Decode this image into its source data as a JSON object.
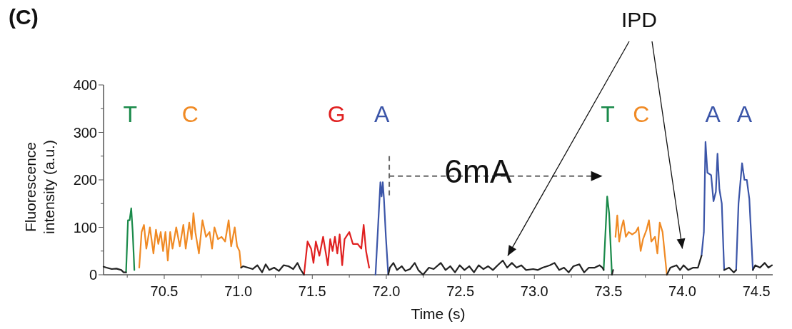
{
  "chart_data": {
    "type": "line",
    "xlabel": "Time (s)",
    "ylabel": "Fluorescence intensity (a.u.)",
    "xlim": [
      70.09,
      74.61
    ],
    "ylim": [
      0,
      400
    ],
    "xticks": [
      {
        "value": 70.25,
        "label": null
      },
      70.5,
      {
        "value": 70.75,
        "label": null
      },
      {
        "value": 71,
        "label": "71.0"
      },
      {
        "value": 71.25,
        "label": null
      },
      71.5,
      {
        "value": 71.75,
        "label": null
      },
      {
        "value": 72,
        "label": "72.0"
      },
      {
        "value": 72.25,
        "label": null
      },
      72.5,
      {
        "value": 72.75,
        "label": null
      },
      {
        "value": 73,
        "label": "73.0"
      },
      {
        "value": 73.25,
        "label": null
      },
      73.5,
      {
        "value": 73.75,
        "label": null
      },
      {
        "value": 74,
        "label": "74.0"
      },
      {
        "value": 74.25,
        "label": null
      },
      74.5
    ],
    "yticks": [
      0,
      {
        "value": 50,
        "label": null
      },
      100,
      {
        "value": 150,
        "label": null
      },
      200,
      {
        "value": 250,
        "label": null
      },
      300,
      {
        "value": 350,
        "label": null
      },
      400
    ],
    "grid": false,
    "marker": "none",
    "line_style": "solid",
    "series": [
      {
        "color": "#1a8a4a",
        "x": [
          70.242,
          70.255,
          70.266,
          70.277,
          70.287,
          70.298,
          71.0,
          73.468,
          73.492,
          73.505,
          73.524
        ],
        "values": [
          5,
          115,
          115,
          140,
          90,
          10,
          null,
          10,
          165,
          130,
          0
        ]
      },
      {
        "color": "#f08a24",
        "x": [
          70.331,
          70.347,
          70.363,
          70.379,
          70.403,
          70.427,
          70.444,
          70.46,
          70.476,
          70.492,
          70.508,
          70.524,
          70.54,
          70.556,
          70.581,
          70.605,
          70.629,
          70.645,
          70.669,
          70.685,
          70.697,
          70.71,
          70.734,
          70.758,
          70.782,
          70.806,
          70.823,
          70.839,
          70.863,
          70.887,
          70.911,
          70.935,
          70.952,
          70.976,
          70.992,
          71.008,
          71.019,
          73.532,
          73.548,
          73.56,
          73.573,
          73.589,
          73.602,
          73.618,
          73.637,
          73.661,
          73.685,
          73.702,
          73.718,
          73.734,
          73.758,
          73.774,
          73.79,
          73.815,
          73.831,
          73.847,
          73.866,
          73.882,
          73.895
        ],
        "values": [
          15,
          90,
          105,
          55,
          100,
          45,
          95,
          65,
          90,
          50,
          90,
          30,
          90,
          55,
          100,
          60,
          105,
          55,
          110,
          75,
          130,
          90,
          45,
          115,
          80,
          90,
          55,
          100,
          75,
          80,
          70,
          115,
          60,
          100,
          60,
          50,
          15,
          null,
          80,
          125,
          70,
          100,
          115,
          80,
          90,
          85,
          90,
          100,
          50,
          75,
          95,
          115,
          70,
          80,
          45,
          110,
          90,
          40,
          0
        ]
      },
      {
        "color": "#e02020",
        "x": [
          71.444,
          71.468,
          71.492,
          71.508,
          71.524,
          71.548,
          71.573,
          71.589,
          71.605,
          71.621,
          71.637,
          71.653,
          71.669,
          71.685,
          71.702,
          71.718,
          71.75,
          71.774,
          71.806,
          71.831,
          71.847,
          71.863,
          71.884
        ],
        "values": [
          0,
          70,
          55,
          25,
          70,
          40,
          80,
          50,
          20,
          75,
          50,
          80,
          45,
          85,
          20,
          75,
          90,
          65,
          65,
          55,
          105,
          50,
          15
        ]
      },
      {
        "color": "#3b55a8",
        "x": [
          71.927,
          71.944,
          71.96,
          71.968,
          71.976,
          71.984,
          71.997,
          72.013,
          72.1,
          74.129,
          74.145,
          74.156,
          74.169,
          74.194,
          74.21,
          74.226,
          74.237,
          74.25,
          74.266,
          74.282,
          74.3,
          74.363,
          74.379,
          74.403,
          74.419,
          74.435,
          74.452,
          74.476
        ],
        "values": [
          0,
          100,
          195,
          165,
          195,
          160,
          80,
          0,
          null,
          40,
          90,
          280,
          215,
          210,
          155,
          175,
          255,
          180,
          150,
          10,
          null,
          10,
          150,
          235,
          200,
          200,
          160,
          10
        ]
      },
      {
        "color": "#222222",
        "x": [
          70.09,
          70.11,
          70.145,
          70.177,
          70.21,
          70.226,
          70.242,
          70.26,
          71.019,
          71.032,
          71.065,
          71.097,
          71.129,
          71.161,
          71.185,
          71.21,
          71.242,
          71.274,
          71.306,
          71.339,
          71.371,
          71.4,
          71.419,
          71.444,
          71.46,
          72.013,
          72.024,
          72.048,
          72.072,
          72.104,
          72.128,
          72.16,
          72.192,
          72.216,
          72.248,
          72.288,
          72.32,
          72.368,
          72.4,
          72.432,
          72.464,
          72.496,
          72.528,
          72.56,
          72.592,
          72.624,
          72.656,
          72.688,
          72.72,
          72.752,
          72.787,
          72.816,
          72.848,
          72.88,
          72.912,
          72.944,
          72.992,
          73.024,
          73.056,
          73.104,
          73.136,
          73.168,
          73.2,
          73.232,
          73.264,
          73.304,
          73.336,
          73.368,
          73.408,
          73.44,
          73.46,
          73.468,
          73.48,
          73.524,
          73.532,
          73.54,
          73.895,
          73.919,
          73.96,
          73.984,
          74.008,
          74.04,
          74.073,
          74.105,
          74.129,
          74.14,
          74.282,
          74.315,
          74.347,
          74.363,
          74.37,
          74.476,
          74.492,
          74.524,
          74.556,
          74.581,
          74.605
        ],
        "values": [
          17,
          15,
          12,
          13,
          10,
          5,
          5,
          null,
          15,
          18,
          15,
          12,
          20,
          5,
          22,
          10,
          15,
          8,
          20,
          18,
          12,
          25,
          12,
          0,
          null,
          0,
          15,
          25,
          10,
          18,
          8,
          12,
          25,
          10,
          0,
          15,
          12,
          25,
          10,
          18,
          5,
          20,
          10,
          18,
          5,
          20,
          12,
          18,
          10,
          20,
          30,
          15,
          25,
          15,
          20,
          10,
          12,
          10,
          15,
          20,
          25,
          10,
          15,
          5,
          18,
          22,
          5,
          15,
          15,
          20,
          15,
          10,
          null,
          0,
          10,
          null,
          0,
          15,
          20,
          10,
          20,
          10,
          15,
          15,
          40,
          null,
          10,
          15,
          5,
          10,
          null,
          10,
          20,
          15,
          25,
          15,
          20
        ]
      }
    ],
    "annotations": [
      "T",
      "C",
      "G",
      "A",
      "T",
      "C",
      "A",
      "A",
      "6mA",
      "IPD",
      "(C)"
    ]
  }
}
